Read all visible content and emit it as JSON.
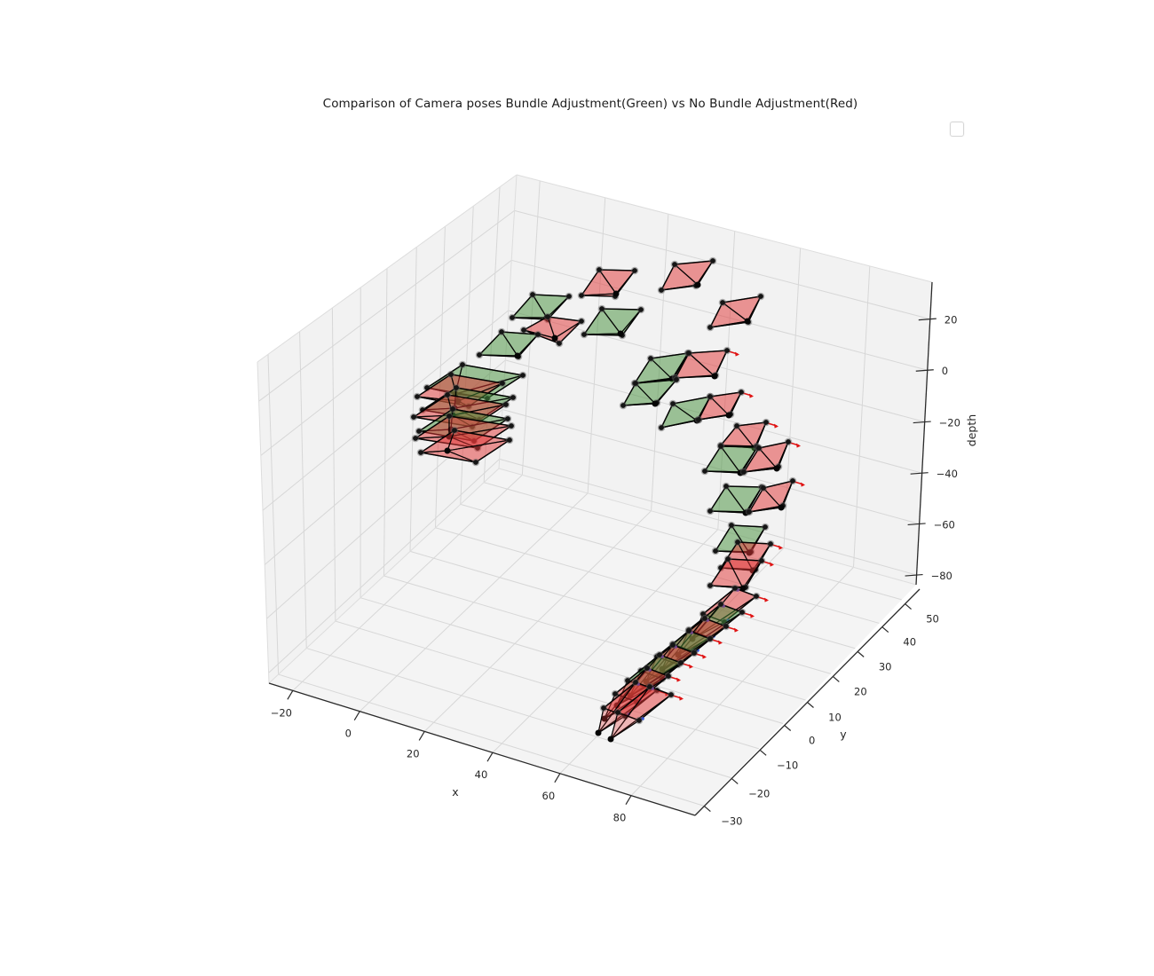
{
  "title": "Comparison of Camera poses Bundle Adjustment(Green) vs No Bundle Adjustment(Red)",
  "legend": {
    "visible": true,
    "entries": []
  },
  "chart_data": {
    "type": "scatter",
    "subtype": "3d-camera-pose-frustums",
    "title": "Comparison of Camera poses Bundle Adjustment(Green) vs No Bundle Adjustment(Red)",
    "axes": {
      "x": {
        "label": "x",
        "ticks": [
          -20,
          0,
          20,
          40,
          60,
          80
        ],
        "tick_labels": [
          "−20",
          "0",
          "20",
          "40",
          "60",
          "80"
        ]
      },
      "y": {
        "label": "y",
        "ticks": [
          -30,
          -20,
          -10,
          0,
          10,
          20,
          30,
          40,
          50
        ],
        "tick_labels": [
          "−30",
          "−20",
          "−10",
          "0",
          "10",
          "20",
          "30",
          "40",
          "50"
        ]
      },
      "depth": {
        "label": "depth",
        "ticks": [
          20,
          0,
          -20,
          -40,
          -60,
          -80
        ],
        "tick_labels": [
          "20",
          "0",
          "−20",
          "−40",
          "−60",
          "−80"
        ]
      }
    },
    "grid": true,
    "series": [
      {
        "name": "Bundle Adjustment",
        "color_name": "green",
        "edge_color": "#000000",
        "face_color": "#46913c"
      },
      {
        "name": "No Bundle Adjustment",
        "color_name": "red",
        "edge_color": "#000000",
        "face_color": "#e13737"
      }
    ],
    "coordinate_space": "projected screen pixels of the rendered 3D view (quad = image-plane corners, apex = camera center)",
    "cameras": [
      {
        "group": "green",
        "quad": [
          [
            577,
            358
          ],
          [
            600,
            332
          ],
          [
            641,
            334
          ],
          [
            617,
            360
          ]
        ],
        "apex": [
          616,
          358
        ],
        "deco": 0
      },
      {
        "group": "red",
        "quad": [
          [
            590,
            372
          ],
          [
            617,
            357
          ],
          [
            655,
            362
          ],
          [
            630,
            387
          ]
        ],
        "apex": [
          625,
          381
        ],
        "deco": 0
      },
      {
        "group": "green",
        "quad": [
          [
            540,
            400
          ],
          [
            565,
            374
          ],
          [
            606,
            377
          ],
          [
            584,
            402
          ]
        ],
        "apex": [
          583,
          401
        ],
        "deco": 0
      },
      {
        "group": "red",
        "quad": [
          [
            655,
            333
          ],
          [
            675,
            304
          ],
          [
            715,
            305
          ],
          [
            693,
            334
          ]
        ],
        "apex": [
          694,
          331
        ],
        "deco": 0
      },
      {
        "group": "green",
        "quad": [
          [
            658,
            377
          ],
          [
            678,
            348
          ],
          [
            722,
            349
          ],
          [
            701,
            378
          ]
        ],
        "apex": [
          699,
          376
        ],
        "deco": 0
      },
      {
        "group": "red",
        "quad": [
          [
            745,
            327
          ],
          [
            760,
            298
          ],
          [
            803,
            294
          ],
          [
            784,
            322
          ]
        ],
        "apex": [
          786,
          321
        ],
        "deco": 0
      },
      {
        "group": "red",
        "quad": [
          [
            800,
            369
          ],
          [
            814,
            341
          ],
          [
            857,
            334
          ],
          [
            843,
            363
          ]
        ],
        "apex": [
          842,
          362
        ],
        "deco": 0
      },
      {
        "group": "green",
        "quad": [
          [
            715,
            432
          ],
          [
            733,
            404
          ],
          [
            775,
            398
          ],
          [
            759,
            426
          ]
        ],
        "apex": [
          757,
          427
        ],
        "deco": 0
      },
      {
        "group": "red",
        "quad": [
          [
            761,
            426
          ],
          [
            776,
            398
          ],
          [
            819,
            395
          ],
          [
            806,
            423
          ]
        ],
        "apex": [
          805,
          424
        ],
        "deco": 1
      },
      {
        "group": "green",
        "quad": [
          [
            702,
            457
          ],
          [
            716,
            432
          ],
          [
            762,
            428
          ],
          [
            740,
            454
          ]
        ],
        "apex": [
          738,
          455
        ],
        "deco": 0
      },
      {
        "group": "green",
        "quad": [
          [
            745,
            482
          ],
          [
            758,
            455
          ],
          [
            800,
            447
          ],
          [
            787,
            473
          ]
        ],
        "apex": [
          785,
          474
        ],
        "deco": 0
      },
      {
        "group": "red",
        "quad": [
          [
            787,
            473
          ],
          [
            800,
            447
          ],
          [
            835,
            442
          ],
          [
            823,
            467
          ]
        ],
        "apex": [
          821,
          468
        ],
        "deco": 1
      },
      {
        "group": "red",
        "quad": [
          [
            812,
            502
          ],
          [
            830,
            480
          ],
          [
            863,
            476
          ],
          [
            852,
            503
          ]
        ],
        "apex": [
          850,
          505
        ],
        "deco": 1
      },
      {
        "group": "green",
        "quad": [
          [
            794,
            531
          ],
          [
            812,
            503
          ],
          [
            853,
            504
          ],
          [
            836,
            532
          ]
        ],
        "apex": [
          834,
          533
        ],
        "deco": 0
      },
      {
        "group": "red",
        "quad": [
          [
            838,
            532
          ],
          [
            855,
            505
          ],
          [
            888,
            498
          ],
          [
            877,
            526
          ]
        ],
        "apex": [
          875,
          528
        ],
        "deco": 1
      },
      {
        "group": "green",
        "quad": [
          [
            800,
            576
          ],
          [
            818,
            548
          ],
          [
            858,
            549
          ],
          [
            842,
            577
          ]
        ],
        "apex": [
          840,
          578
        ],
        "deco": 0
      },
      {
        "group": "red",
        "quad": [
          [
            844,
            577
          ],
          [
            860,
            550
          ],
          [
            893,
            542
          ],
          [
            882,
            570
          ]
        ],
        "apex": [
          880,
          572
        ],
        "deco": 1
      },
      {
        "group": "green",
        "quad": [
          [
            806,
            621
          ],
          [
            824,
            592
          ],
          [
            862,
            594
          ],
          [
            846,
            622
          ]
        ],
        "apex": [
          844,
          623
        ],
        "deco": 0
      },
      {
        "group": "red",
        "quad": [
          [
            812,
            640
          ],
          [
            831,
            611
          ],
          [
            868,
            613
          ],
          [
            851,
            642
          ]
        ],
        "apex": [
          848,
          643
        ],
        "deco": 1
      },
      {
        "group": "red",
        "quad": [
          [
            800,
            660
          ],
          [
            820,
            630
          ],
          [
            858,
            632
          ],
          [
            840,
            662
          ]
        ],
        "apex": [
          837,
          663
        ],
        "deco": 1
      },
      {
        "group": "red",
        "quad": [
          [
            792,
            692
          ],
          [
            828,
            663
          ],
          [
            852,
            672
          ],
          [
            816,
            701
          ]
        ],
        "apex": [
          780,
          720
        ],
        "deco": 2
      },
      {
        "group": "green",
        "quad": [
          [
            776,
            710
          ],
          [
            812,
            681
          ],
          [
            836,
            690
          ],
          [
            800,
            719
          ]
        ],
        "apex": [
          764,
          738
        ],
        "deco": 2
      },
      {
        "group": "red",
        "quad": [
          [
            758,
            726
          ],
          [
            794,
            697
          ],
          [
            818,
            706
          ],
          [
            782,
            735
          ]
        ],
        "apex": [
          746,
          754
        ],
        "deco": 2
      },
      {
        "group": "green",
        "quad": [
          [
            740,
            740
          ],
          [
            776,
            711
          ],
          [
            800,
            720
          ],
          [
            764,
            749
          ]
        ],
        "apex": [
          728,
          768
        ],
        "deco": 2
      },
      {
        "group": "red",
        "quad": [
          [
            722,
            756
          ],
          [
            758,
            727
          ],
          [
            782,
            736
          ],
          [
            746,
            765
          ]
        ],
        "apex": [
          710,
          784
        ],
        "deco": 2
      },
      {
        "group": "green",
        "quad": [
          [
            707,
            767
          ],
          [
            743,
            738
          ],
          [
            767,
            747
          ],
          [
            731,
            776
          ]
        ],
        "apex": [
          695,
          795
        ],
        "deco": 2
      },
      {
        "group": "red",
        "quad": [
          [
            693,
            782
          ],
          [
            729,
            753
          ],
          [
            753,
            762
          ],
          [
            717,
            791
          ]
        ],
        "apex": [
          681,
          810
        ],
        "deco": 2
      },
      {
        "group": "red",
        "quad": [
          [
            680,
            798
          ],
          [
            716,
            769
          ],
          [
            740,
            778
          ],
          [
            704,
            807
          ]
        ],
        "apex": [
          674,
          826
        ],
        "deco": 2
      },
      {
        "group": "red",
        "quad": [
          [
            696,
            803
          ],
          [
            732,
            774
          ],
          [
            756,
            783
          ],
          [
            720,
            812
          ]
        ],
        "apex": [
          688,
          833
        ],
        "deco": 2
      },
      {
        "group": "green",
        "quad": [
          [
            481,
            437
          ],
          [
            521,
            411
          ],
          [
            589,
            423
          ],
          [
            549,
            449
          ]
        ],
        "apex": [
          513,
          444
        ],
        "deco": 0
      },
      {
        "group": "red",
        "quad": [
          [
            470,
            447
          ],
          [
            508,
            422
          ],
          [
            566,
            432
          ],
          [
            528,
            458
          ]
        ],
        "apex": [
          516,
          452
        ],
        "deco": 0
      },
      {
        "group": "green",
        "quad": [
          [
            476,
            462
          ],
          [
            514,
            437
          ],
          [
            578,
            448
          ],
          [
            540,
            473
          ]
        ],
        "apex": [
          512,
          460
        ],
        "deco": 0
      },
      {
        "group": "red",
        "quad": [
          [
            466,
            470
          ],
          [
            504,
            445
          ],
          [
            570,
            456
          ],
          [
            532,
            481
          ]
        ],
        "apex": [
          510,
          468
        ],
        "deco": 0
      },
      {
        "group": "green",
        "quad": [
          [
            472,
            486
          ],
          [
            510,
            461
          ],
          [
            572,
            472
          ],
          [
            534,
            497
          ]
        ],
        "apex": [
          508,
          484
        ],
        "deco": 0
      },
      {
        "group": "red",
        "quad": [
          [
            468,
            494
          ],
          [
            506,
            469
          ],
          [
            576,
            480
          ],
          [
            538,
            505
          ]
        ],
        "apex": [
          506,
          492
        ],
        "deco": 0
      },
      {
        "group": "red",
        "quad": [
          [
            474,
            510
          ],
          [
            512,
            485
          ],
          [
            574,
            496
          ],
          [
            536,
            521
          ]
        ],
        "apex": [
          504,
          508
        ],
        "deco": 0
      }
    ],
    "colors": {
      "pane_wall": "#f2f2f2",
      "pane_floor": "#f4f4f4",
      "grid_line": "#d7d7d7",
      "pane_edge": "#dddddd",
      "spine": "#2a2a2a",
      "tick_text": "#262626",
      "marker_core": "#151515",
      "marker_halo": "rgba(95,95,95,0.45)",
      "arrow_red": "#e01414",
      "dot_purple": "#7a3fa0",
      "dot_blue": "#2c4fd8"
    }
  }
}
